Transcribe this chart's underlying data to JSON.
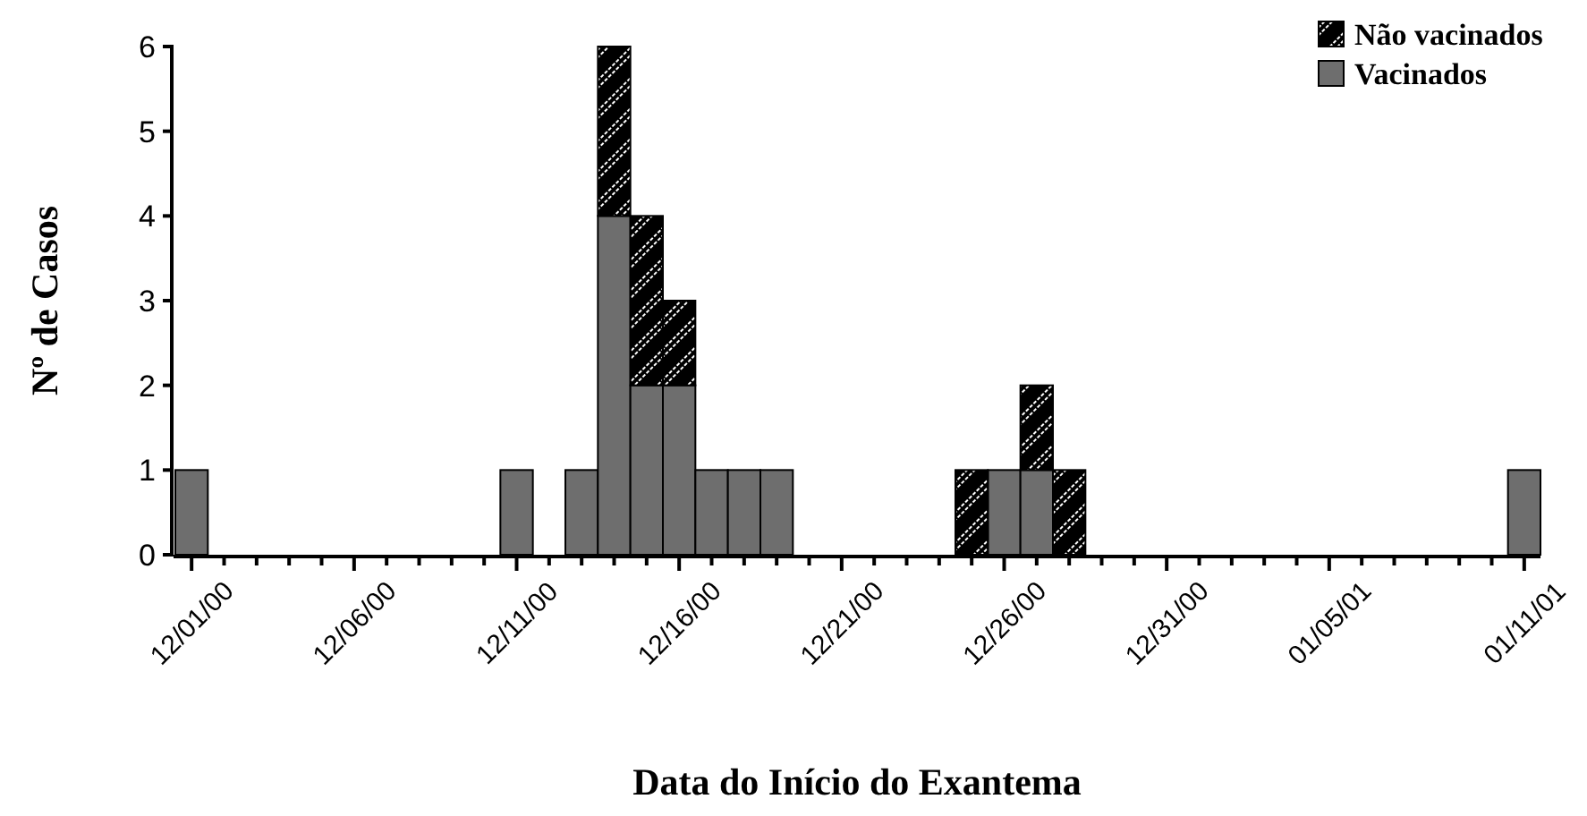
{
  "chart_data": {
    "type": "bar",
    "stacked": true,
    "xlabel": "Data do Início do Exantema",
    "ylabel": "Nº de Casos",
    "categories": [
      "12/01/00",
      null,
      null,
      null,
      null,
      "12/06/00",
      null,
      null,
      null,
      null,
      "12/11/00",
      null,
      null,
      null,
      null,
      "12/16/00",
      null,
      null,
      null,
      null,
      "12/21/00",
      null,
      null,
      null,
      null,
      "12/26/00",
      null,
      null,
      null,
      null,
      "12/31/00",
      null,
      null,
      null,
      null,
      "01/05/01",
      null,
      null,
      null,
      null,
      null,
      "01/11/01"
    ],
    "series": [
      {
        "name": "Vacinados",
        "color": "#6e6e6e",
        "values": [
          1,
          0,
          0,
          0,
          0,
          0,
          0,
          0,
          0,
          0,
          1,
          0,
          1,
          4,
          2,
          2,
          1,
          1,
          1,
          0,
          0,
          0,
          0,
          0,
          0,
          1,
          1,
          0,
          0,
          0,
          0,
          0,
          0,
          0,
          0,
          0,
          0,
          0,
          0,
          0,
          0,
          1
        ]
      },
      {
        "name": "Não vacinados",
        "color": "#000000",
        "values": [
          0,
          0,
          0,
          0,
          0,
          0,
          0,
          0,
          0,
          0,
          0,
          0,
          0,
          2,
          2,
          1,
          0,
          0,
          0,
          0,
          0,
          0,
          0,
          0,
          1,
          0,
          1,
          1,
          0,
          0,
          0,
          0,
          0,
          0,
          0,
          0,
          0,
          0,
          0,
          0,
          0,
          0
        ]
      }
    ],
    "ylim": [
      0,
      6
    ],
    "yticks": [
      0,
      1,
      2,
      3,
      4,
      5,
      6
    ],
    "legend": "top right"
  }
}
